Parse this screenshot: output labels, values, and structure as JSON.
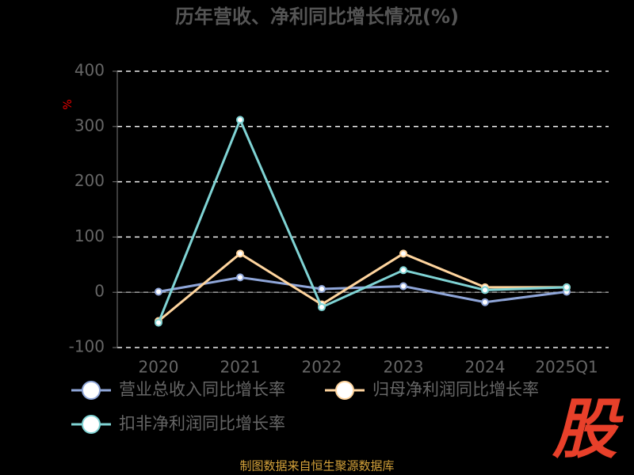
{
  "chart_data": {
    "type": "line",
    "title": "历年营收、净利同比增长情况(%)",
    "y_label": "%",
    "categories": [
      "2020",
      "2021",
      "2022",
      "2023",
      "2024",
      "2025Q1"
    ],
    "series": [
      {
        "name": "营业总收入同比增长率",
        "color": "#8fa6d9",
        "values": [
          1,
          27,
          6,
          11,
          -18,
          1
        ]
      },
      {
        "name": "归母净利润同比增长率",
        "color": "#ffd59e",
        "values": [
          -52,
          70,
          -22,
          70,
          9,
          9
        ]
      },
      {
        "name": "扣非净利润同比增长率",
        "color": "#7fd3d4",
        "values": [
          -55,
          312,
          -27,
          40,
          4,
          9
        ]
      }
    ],
    "ylim": [
      -100,
      400
    ],
    "yticks": [
      -100,
      0,
      100,
      200,
      300,
      400
    ],
    "grid": true,
    "source": "制图数据来自恒生聚源数据库",
    "logo": "股"
  }
}
